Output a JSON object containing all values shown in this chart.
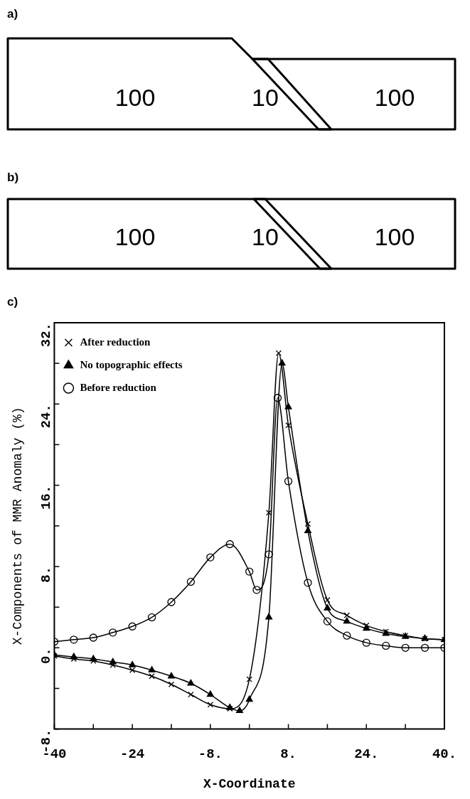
{
  "chart_data": [
    {
      "type": "other",
      "title": "a)",
      "annotations": [
        "100",
        "10",
        "100"
      ]
    },
    {
      "type": "other",
      "title": "b)",
      "annotations": [
        "100",
        "10",
        "100"
      ]
    },
    {
      "type": "line",
      "title": "c)",
      "xlabel": "X-Coordinate",
      "ylabel": "X-Components of MMR Anomaly (%)",
      "xlim": [
        -40,
        40
      ],
      "ylim": [
        -8,
        32
      ],
      "xticks": [
        {
          "value": -40,
          "label": "-40"
        },
        {
          "value": -32,
          "label": null
        },
        {
          "value": -24,
          "label": "-24"
        },
        {
          "value": -16,
          "label": null
        },
        {
          "value": -8,
          "label": "-8."
        },
        {
          "value": 0,
          "label": null
        },
        {
          "value": 8,
          "label": "8."
        },
        {
          "value": 16,
          "label": null
        },
        {
          "value": 24,
          "label": "24."
        },
        {
          "value": 32,
          "label": null
        },
        {
          "value": 40,
          "label": "40."
        }
      ],
      "yticks": [
        {
          "value": -8,
          "label": "-8."
        },
        {
          "value": -4,
          "label": null
        },
        {
          "value": 0,
          "label": "0."
        },
        {
          "value": 4,
          "label": null
        },
        {
          "value": 8,
          "label": "8."
        },
        {
          "value": 12,
          "label": null
        },
        {
          "value": 16,
          "label": "16."
        },
        {
          "value": 20,
          "label": null
        },
        {
          "value": 24,
          "label": "24."
        },
        {
          "value": 28,
          "label": null
        },
        {
          "value": 32,
          "label": "32."
        }
      ],
      "grid": false,
      "legend": "top left",
      "line_style": "solid",
      "series": [
        {
          "name": "After reduction",
          "color": "#000000",
          "marker": "cross",
          "x": [
            -40,
            -36,
            -32,
            -28,
            -24,
            -20,
            -16,
            -12,
            -8,
            -4,
            0,
            4,
            6,
            8,
            12,
            16,
            20,
            24,
            28,
            32,
            36,
            40
          ],
          "values": [
            -0.8,
            -1.1,
            -1.3,
            -1.7,
            -2.2,
            -2.8,
            -3.6,
            -4.6,
            -5.6,
            -6.0,
            -3.1,
            13.3,
            29.0,
            21.9,
            12.2,
            4.7,
            3.2,
            2.2,
            1.6,
            1.2,
            0.9,
            0.8
          ]
        },
        {
          "name": "No topographic effects",
          "color": "#000000",
          "marker": "triangle",
          "x": [
            -40,
            -36,
            -32,
            -28,
            -24,
            -20,
            -16,
            -12,
            -8,
            -4,
            -2,
            0,
            4,
            6.7,
            8,
            12,
            16,
            20,
            24,
            28,
            32,
            36,
            40
          ],
          "values": [
            -0.7,
            -0.9,
            -1.1,
            -1.4,
            -1.7,
            -2.2,
            -2.8,
            -3.5,
            -4.6,
            -5.9,
            -6.2,
            -5.1,
            3.0,
            28.0,
            23.7,
            11.5,
            3.9,
            2.6,
            1.9,
            1.4,
            1.1,
            0.9,
            0.8
          ]
        },
        {
          "name": "Before reduction",
          "color": "#000000",
          "marker": "circle",
          "x": [
            -40,
            -36,
            -32,
            -28,
            -24,
            -20,
            -16,
            -12,
            -8,
            -4,
            0,
            1.5,
            4,
            5.8,
            8,
            12,
            16,
            20,
            24,
            28,
            32,
            36,
            40
          ],
          "values": [
            0.6,
            0.8,
            1.0,
            1.5,
            2.1,
            3.0,
            4.5,
            6.5,
            8.9,
            10.2,
            7.5,
            5.7,
            9.2,
            24.6,
            16.4,
            6.4,
            2.6,
            1.2,
            0.5,
            0.2,
            0.0,
            0.0,
            0.0
          ]
        }
      ]
    }
  ]
}
